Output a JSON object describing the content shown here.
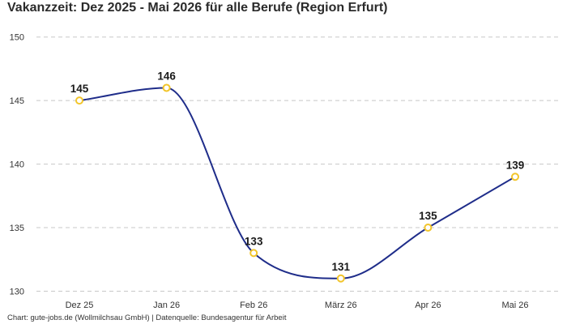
{
  "chart_data": {
    "type": "line",
    "title": "Vakanzzeit: Dez 2025 - Mai 2026 für alle Berufe (Region Erfurt)",
    "categories": [
      "Dez 25",
      "Jan 26",
      "Feb 26",
      "März 26",
      "Apr 26",
      "Mai 26"
    ],
    "values": [
      145,
      146,
      133,
      131,
      135,
      139
    ],
    "data_labels": [
      "145",
      "146",
      "133",
      "131",
      "135",
      "139"
    ],
    "yticks": [
      130,
      135,
      140,
      145,
      150
    ],
    "ytick_labels": [
      "130",
      "135",
      "140",
      "145",
      "150"
    ],
    "ylim": [
      129.2,
      151
    ],
    "grid": "horizontal dashed",
    "legend": "none",
    "xlabel": "",
    "ylabel": "",
    "line_color": "#1f2d8a",
    "marker_stroke": "#f2c52b",
    "marker_fill": "#ffffff",
    "grid_color": "#c8c8c8"
  },
  "footer": {
    "source_note": "Chart: gute-jobs.de (Wollmilchsau GmbH) | Datenquelle: Bundesagentur für Arbeit"
  }
}
